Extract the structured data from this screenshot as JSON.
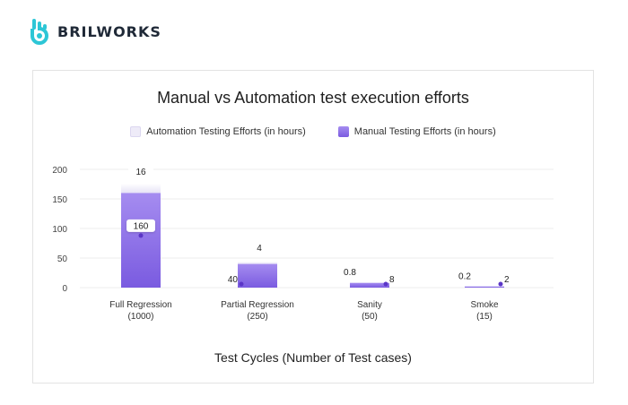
{
  "brand": {
    "name": "BRILWORKS",
    "logo_icon": "brilworks-logo-icon",
    "color": "#2dc6d6"
  },
  "colors": {
    "automation": "#e9e6f7",
    "manual_top": "#a58cf0",
    "manual_bottom": "#7a5be0",
    "marker": "#5b36c7",
    "grid": "#eeeeee"
  },
  "chart_data": {
    "type": "bar",
    "title": "Manual vs Automation test execution efforts",
    "xlabel": "Test Cycles (Number of Test cases)",
    "ylabel": "",
    "ylim": [
      0,
      200
    ],
    "yticks": [
      0,
      50,
      100,
      150,
      200
    ],
    "categories": [
      [
        "Full Regression",
        "(1000)"
      ],
      [
        "Partial Regression",
        "(250)"
      ],
      [
        "Sanity",
        "(50)"
      ],
      [
        "Smoke",
        "(15)"
      ]
    ],
    "series": [
      {
        "name": "Automation Testing Efforts (in hours)",
        "values": [
          16,
          4,
          0.8,
          0.2
        ]
      },
      {
        "name": "Manual Testing Efforts (in hours)",
        "values": [
          160,
          40,
          8,
          2
        ]
      }
    ],
    "data_labels": {
      "automation": [
        "16",
        "4",
        "0.8",
        "0.2"
      ],
      "manual": [
        "160",
        "40",
        "8",
        "2"
      ]
    },
    "legend_position": "top",
    "grid": true
  }
}
